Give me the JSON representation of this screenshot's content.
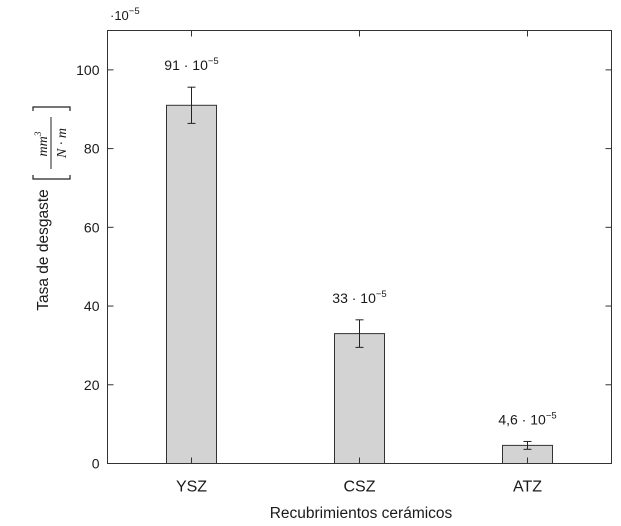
{
  "chart_data": {
    "type": "bar",
    "categories": [
      "YSZ",
      "CSZ",
      "ATZ"
    ],
    "values": [
      91,
      33,
      4.6
    ],
    "errors": [
      4.6,
      3.5,
      1.0
    ],
    "data_labels": [
      {
        "base": "91 · 10",
        "exp": "−5"
      },
      {
        "base": "33 · 10",
        "exp": "−5"
      },
      {
        "base": "4,6 · 10",
        "exp": "−5"
      }
    ],
    "ylim": [
      0,
      110
    ],
    "yticks": [
      0,
      20,
      40,
      60,
      80,
      100
    ],
    "ytick_labels": [
      "0",
      "20",
      "40",
      "60",
      "80",
      "100"
    ],
    "y_multiplier": {
      "base": "·10",
      "exp": "−5"
    },
    "xlabel": "Recubrimientos cerámicos",
    "ylabel": "Tasa de desgaste",
    "ylabel_unit": {
      "numerator": "mm",
      "numerator_exp": "3",
      "denominator": "N · m"
    },
    "bar_color": "#d3d3d3",
    "bar_edge_color": "#333333",
    "grid": false,
    "legend": "none"
  }
}
